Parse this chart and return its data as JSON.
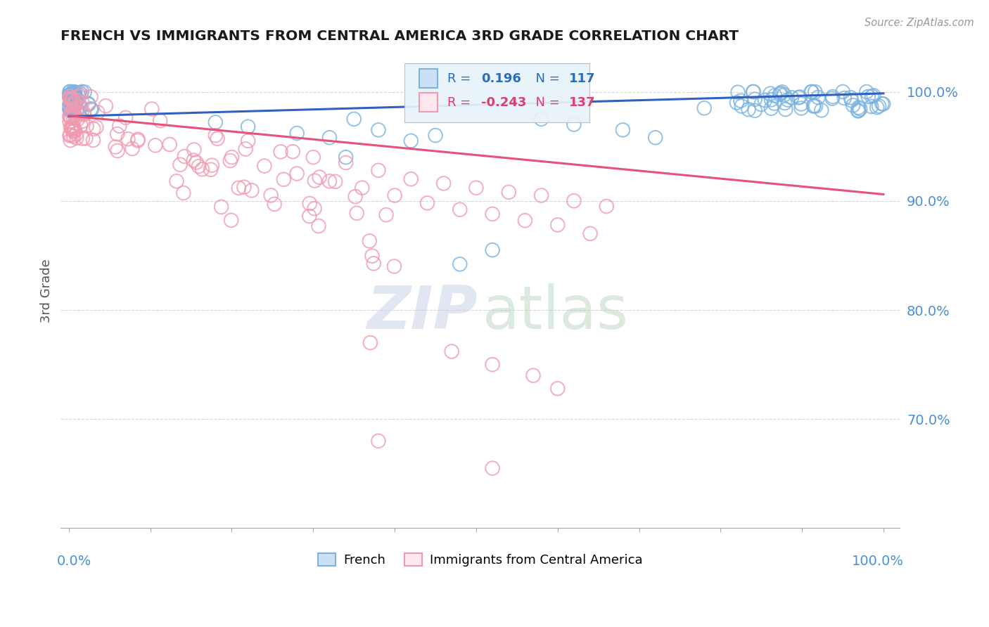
{
  "title": "FRENCH VS IMMIGRANTS FROM CENTRAL AMERICA 3RD GRADE CORRELATION CHART",
  "source": "Source: ZipAtlas.com",
  "ylabel": "3rd Grade",
  "ytick_labels": [
    "70.0%",
    "80.0%",
    "90.0%",
    "100.0%"
  ],
  "ytick_values": [
    0.7,
    0.8,
    0.9,
    1.0
  ],
  "xlim": [
    -0.01,
    1.02
  ],
  "ylim": [
    0.6,
    1.035
  ],
  "blue_color": "#7ab3e0",
  "pink_color": "#f09ab0",
  "blue_line_color": "#3060c0",
  "pink_line_color": "#e8527a",
  "blue_legend_color": "#2b6cb8",
  "pink_legend_color": "#d94070",
  "title_color": "#1a1a1a",
  "axis_label_color": "#4a90d9",
  "grid_color": "#cccccc",
  "background_color": "#ffffff",
  "watermark_zip_color": "#c8d4e8",
  "watermark_atlas_color": "#b8d4c0",
  "blue_R": "0.196",
  "blue_N": "117",
  "pink_R": "-0.243",
  "pink_N": "137",
  "blue_line_y0": 0.9775,
  "blue_line_y1": 0.9985,
  "pink_line_y0": 0.978,
  "pink_line_y1": 0.906,
  "legend_label_blue": "French",
  "legend_label_pink": "Immigrants from Central America"
}
